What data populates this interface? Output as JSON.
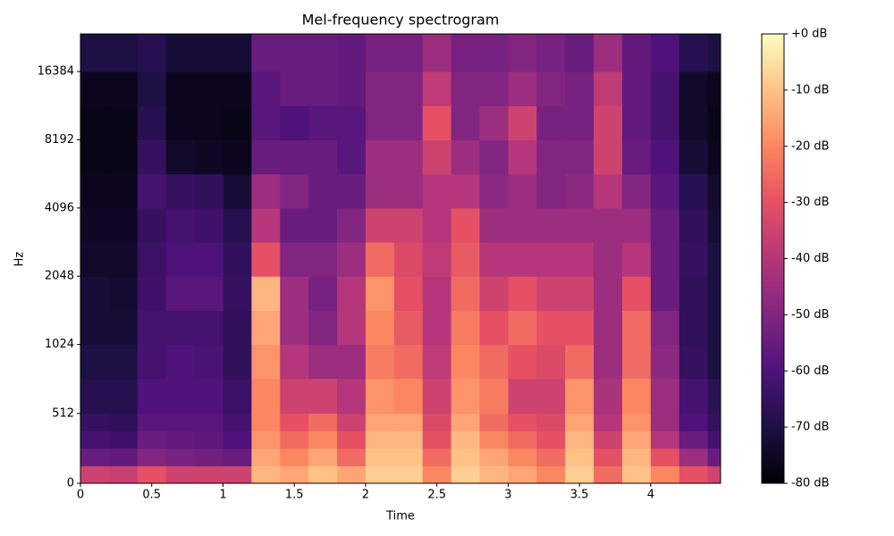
{
  "chart_data": {
    "type": "heatmap",
    "title": "Mel-frequency spectrogram",
    "x_label": "Time",
    "y_label": "Hz",
    "colormap": "magma",
    "yscale": "symlog",
    "linthresh": 1000,
    "xlim": [
      0,
      4.49
    ],
    "ylim": [
      0,
      24000
    ],
    "xticks": [
      0,
      0.5,
      1,
      1.5,
      2,
      2.5,
      3,
      3.5,
      4
    ],
    "yticks": [
      0,
      512,
      1024,
      2048,
      4096,
      8192,
      16384
    ],
    "x_edges": [
      0,
      0.2,
      0.4,
      0.6,
      0.8,
      1.0,
      1.2,
      1.4,
      1.6,
      1.8,
      2.0,
      2.2,
      2.4,
      2.6,
      2.8,
      3.0,
      3.2,
      3.4,
      3.6,
      3.8,
      4.0,
      4.2,
      4.4,
      4.49
    ],
    "y_edges": [
      0,
      128,
      256,
      384,
      512,
      768,
      1024,
      1448,
      2048,
      2896,
      4096,
      5793,
      8192,
      11585,
      16384,
      24000
    ],
    "values": [
      [
        -35,
        -55,
        -62,
        -65,
        -68,
        -70,
        -72,
        -72,
        -74,
        -75,
        -76,
        -77,
        -77,
        -76,
        -70
      ],
      [
        -36,
        -56,
        -63,
        -66,
        -68,
        -70,
        -72,
        -73,
        -74,
        -75,
        -76,
        -77,
        -77,
        -76,
        -70
      ],
      [
        -30,
        -50,
        -55,
        -58,
        -60,
        -62,
        -62,
        -63,
        -64,
        -65,
        -62,
        -65,
        -68,
        -70,
        -68
      ],
      [
        -35,
        -52,
        -56,
        -58,
        -60,
        -60,
        -62,
        -58,
        -60,
        -62,
        -65,
        -74,
        -76,
        -76,
        -72
      ],
      [
        -35,
        -53,
        -57,
        -58,
        -60,
        -61,
        -62,
        -58,
        -60,
        -63,
        -66,
        -75,
        -76,
        -76,
        -72
      ],
      [
        -35,
        -55,
        -60,
        -62,
        -64,
        -66,
        -66,
        -65,
        -66,
        -68,
        -72,
        -76,
        -77,
        -76,
        -72
      ],
      [
        -12,
        -15,
        -18,
        -20,
        -20,
        -18,
        -15,
        -12,
        -30,
        -40,
        -45,
        -55,
        -58,
        -58,
        -55
      ],
      [
        -15,
        -20,
        -25,
        -30,
        -35,
        -40,
        -45,
        -45,
        -50,
        -55,
        -50,
        -55,
        -60,
        -55,
        -55
      ],
      [
        -10,
        -15,
        -20,
        -25,
        -35,
        -45,
        -50,
        -52,
        -50,
        -55,
        -55,
        -55,
        -58,
        -55,
        -55
      ],
      [
        -15,
        -25,
        -30,
        -35,
        -40,
        -45,
        -40,
        -40,
        -45,
        -50,
        -55,
        -58,
        -58,
        -56,
        -56
      ],
      [
        -8,
        -10,
        -12,
        -15,
        -18,
        -22,
        -20,
        -18,
        -25,
        -35,
        -45,
        -45,
        -50,
        -50,
        -52
      ],
      [
        -8,
        -10,
        -12,
        -15,
        -20,
        -25,
        -28,
        -30,
        -32,
        -35,
        -45,
        -45,
        -50,
        -50,
        -52
      ],
      [
        -20,
        -25,
        -30,
        -32,
        -35,
        -38,
        -40,
        -40,
        -38,
        -40,
        -40,
        -35,
        -30,
        -38,
        -45
      ],
      [
        -8,
        -10,
        -12,
        -15,
        -18,
        -20,
        -22,
        -25,
        -28,
        -30,
        -40,
        -45,
        -50,
        -50,
        -52
      ],
      [
        -12,
        -15,
        -20,
        -25,
        -22,
        -25,
        -30,
        -35,
        -40,
        -45,
        -48,
        -50,
        -45,
        -50,
        -52
      ],
      [
        -15,
        -20,
        -25,
        -30,
        -35,
        -30,
        -25,
        -30,
        -40,
        -45,
        -45,
        -40,
        -35,
        -45,
        -50
      ],
      [
        -20,
        -25,
        -30,
        -32,
        -35,
        -32,
        -30,
        -35,
        -40,
        -45,
        -50,
        -50,
        -52,
        -50,
        -52
      ],
      [
        -8,
        -10,
        -12,
        -15,
        -18,
        -25,
        -30,
        -35,
        -40,
        -45,
        -48,
        -50,
        -52,
        -52,
        -55
      ],
      [
        -25,
        -30,
        -35,
        -40,
        -42,
        -45,
        -45,
        -45,
        -45,
        -45,
        -40,
        -35,
        -35,
        -38,
        -45
      ],
      [
        -10,
        -12,
        -15,
        -18,
        -20,
        -25,
        -25,
        -30,
        -40,
        -45,
        -50,
        -55,
        -56,
        -56,
        -56
      ],
      [
        -20,
        -30,
        -40,
        -45,
        -45,
        -48,
        -50,
        -55,
        -55,
        -55,
        -58,
        -60,
        -62,
        -62,
        -60
      ],
      [
        -30,
        -45,
        -55,
        -60,
        -62,
        -65,
        -66,
        -66,
        -65,
        -66,
        -68,
        -72,
        -74,
        -74,
        -68
      ],
      [
        -35,
        -55,
        -62,
        -65,
        -67,
        -70,
        -70,
        -70,
        -70,
        -72,
        -74,
        -76,
        -77,
        -76,
        -70
      ]
    ],
    "colorbar": {
      "lim": [
        -80,
        0
      ],
      "ticks": [
        {
          "value": 0,
          "label": "+0 dB"
        },
        {
          "value": -10,
          "label": "-10 dB"
        },
        {
          "value": -20,
          "label": "-20 dB"
        },
        {
          "value": -30,
          "label": "-30 dB"
        },
        {
          "value": -40,
          "label": "-40 dB"
        },
        {
          "value": -50,
          "label": "-50 dB"
        },
        {
          "value": -60,
          "label": "-60 dB"
        },
        {
          "value": -70,
          "label": "-70 dB"
        },
        {
          "value": -80,
          "label": "-80 dB"
        }
      ]
    }
  }
}
